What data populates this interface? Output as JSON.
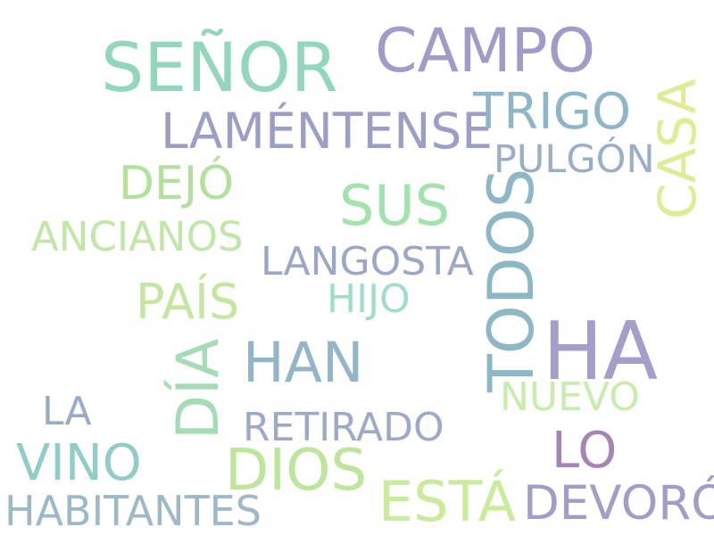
{
  "words": [
    {
      "text": "SEÑOR",
      "color": "#92d7bb"
    },
    {
      "text": "CAMPO",
      "color": "#a19bc8"
    },
    {
      "text": "LAMÉNTENSE",
      "color": "#9b9fc5"
    },
    {
      "text": "TRIGO",
      "color": "#8fb6c7"
    },
    {
      "text": "PULGÓN",
      "color": "#9aaec8"
    },
    {
      "text": "CASA",
      "color": "#dfec95"
    },
    {
      "text": "DEJÓ",
      "color": "#b3e19b"
    },
    {
      "text": "SUS",
      "color": "#a3e2ad"
    },
    {
      "text": "TODOS",
      "color": "#8eb7c6"
    },
    {
      "text": "ANCIANOS",
      "color": "#c0e6a8"
    },
    {
      "text": "LANGOSTA",
      "color": "#9ca6c6"
    },
    {
      "text": "PAÍS",
      "color": "#c5e6a1"
    },
    {
      "text": "HIJO",
      "color": "#9fdec4"
    },
    {
      "text": "HA",
      "color": "#a59ec9"
    },
    {
      "text": "DÍA",
      "color": "#a6dcb5"
    },
    {
      "text": "HAN",
      "color": "#92b6c7"
    },
    {
      "text": "NUEVO",
      "color": "#c8ecae"
    },
    {
      "text": "LA",
      "color": "#99abc7"
    },
    {
      "text": "RETIRADO",
      "color": "#9caac7"
    },
    {
      "text": "LO",
      "color": "#a685b6"
    },
    {
      "text": "VINO",
      "color": "#90cdc6"
    },
    {
      "text": "DIOS",
      "color": "#bfe59c"
    },
    {
      "text": "ESTÁ",
      "color": "#c8ec9a"
    },
    {
      "text": "DEVORÓ",
      "color": "#9e9ec7"
    },
    {
      "text": "HABITANTES",
      "color": "#9db8c9"
    }
  ]
}
